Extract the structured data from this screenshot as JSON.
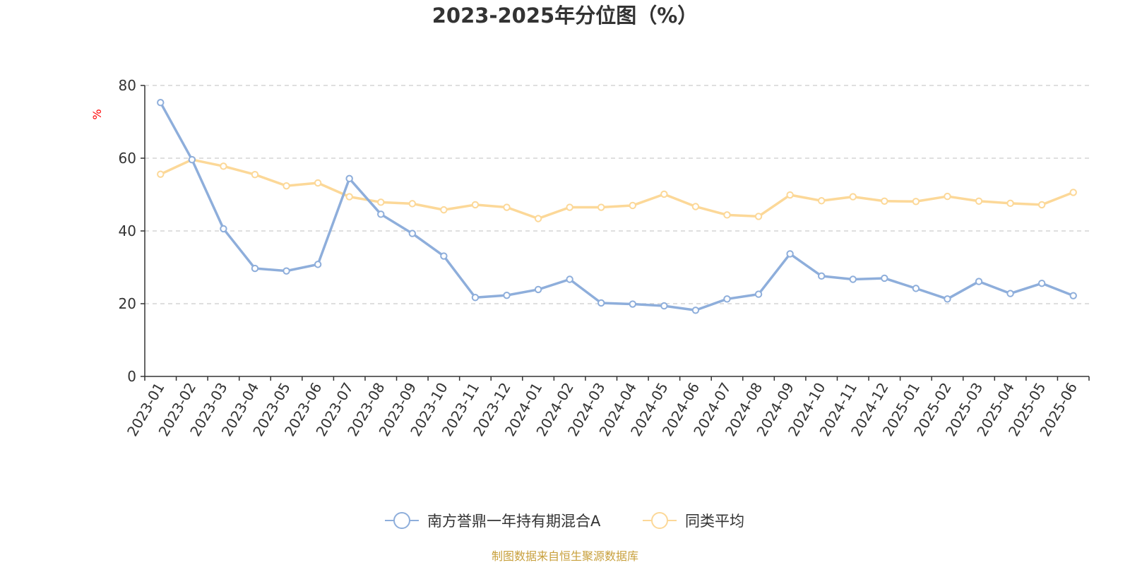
{
  "chart_data": {
    "type": "line",
    "title": "2023-2025年分位图（%）",
    "ylabel": "%",
    "ylim": [
      0,
      80
    ],
    "yticks": [
      0,
      20,
      40,
      60,
      80
    ],
    "grid": true,
    "legend_position": "bottom",
    "categories": [
      "2023-01",
      "2023-02",
      "2023-03",
      "2023-04",
      "2023-05",
      "2023-06",
      "2023-07",
      "2023-08",
      "2023-09",
      "2023-10",
      "2023-11",
      "2023-12",
      "2024-01",
      "2024-02",
      "2024-03",
      "2024-04",
      "2024-05",
      "2024-06",
      "2024-07",
      "2024-08",
      "2024-09",
      "2024-10",
      "2024-11",
      "2024-12",
      "2025-01",
      "2025-02",
      "2025-03",
      "2025-04",
      "2025-05",
      "2025-06"
    ],
    "series": [
      {
        "name": "南方誉鼎一年持有期混合A",
        "color": "#8eaedb",
        "values": [
          75.3,
          59.6,
          40.6,
          29.7,
          29.0,
          30.8,
          54.4,
          44.6,
          39.3,
          33.1,
          21.7,
          22.3,
          23.9,
          26.7,
          20.2,
          19.9,
          19.4,
          18.2,
          21.3,
          22.6,
          33.7,
          27.6,
          26.7,
          27.0,
          24.2,
          21.3,
          26.1,
          22.8,
          25.6,
          22.2
        ]
      },
      {
        "name": "同类平均",
        "color": "#fcd898",
        "values": [
          55.6,
          59.6,
          57.8,
          55.5,
          52.4,
          53.2,
          49.4,
          47.9,
          47.5,
          45.8,
          47.2,
          46.5,
          43.4,
          46.5,
          46.5,
          47.0,
          50.1,
          46.7,
          44.4,
          44.0,
          49.9,
          48.3,
          49.4,
          48.2,
          48.1,
          49.5,
          48.2,
          47.6,
          47.2,
          50.6
        ]
      }
    ]
  },
  "footer": {
    "source_text": "制图数据来自恒生聚源数据库"
  }
}
